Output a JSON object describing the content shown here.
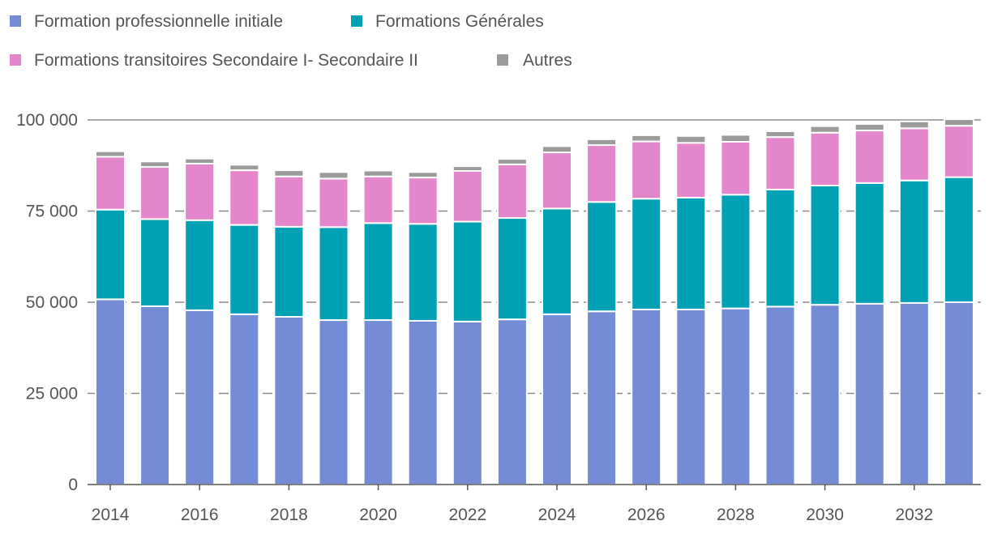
{
  "chart_data": {
    "type": "bar",
    "stacked": true,
    "title": "",
    "xlabel": "",
    "ylabel": "",
    "ylim": [
      0,
      100000
    ],
    "y_ticks": [
      0,
      25000,
      50000,
      75000,
      100000
    ],
    "y_tick_labels": [
      "0",
      "25 000",
      "50 000",
      "75 000",
      "100 000"
    ],
    "x_tick_labels": [
      "2014",
      "2016",
      "2018",
      "2020",
      "2022",
      "2024",
      "2026",
      "2028",
      "2030",
      "2032"
    ],
    "legend_position": "top-left",
    "grid": true,
    "categories": [
      "2014",
      "2015",
      "2016",
      "2017",
      "2018",
      "2019",
      "2020",
      "2021",
      "2022",
      "2023",
      "2024",
      "2025",
      "2026",
      "2027",
      "2028",
      "2029",
      "2030",
      "2031",
      "2032",
      "2033"
    ],
    "series": [
      {
        "name": "Formation professionnelle initiale",
        "color": "#748bd6",
        "values": [
          50800,
          48900,
          47800,
          46700,
          46000,
          45100,
          45100,
          44900,
          44700,
          45300,
          46700,
          47500,
          48000,
          48000,
          48300,
          48800,
          49300,
          49600,
          49800,
          50000
        ]
      },
      {
        "name": "Formations Générales",
        "color": "#00a0b5",
        "values": [
          24600,
          23900,
          24700,
          24500,
          24700,
          25500,
          26600,
          26600,
          27400,
          27800,
          29000,
          30000,
          30400,
          30700,
          31200,
          32100,
          32700,
          33100,
          33600,
          34300
        ]
      },
      {
        "name": "Formations transitoires Secondaire I- Secondaire II",
        "color": "#e386cc",
        "values": [
          14500,
          14300,
          15500,
          15000,
          13800,
          13300,
          12800,
          12700,
          13900,
          14700,
          15400,
          15600,
          15700,
          15000,
          14500,
          14400,
          14500,
          14400,
          14300,
          14100
        ]
      },
      {
        "name": "Autres",
        "color": "#9b9b9b",
        "values": [
          1500,
          1500,
          1400,
          1500,
          1700,
          1800,
          1600,
          1500,
          1300,
          1500,
          1700,
          1600,
          1700,
          1900,
          1900,
          1600,
          1800,
          1800,
          1900,
          1800
        ]
      }
    ]
  }
}
